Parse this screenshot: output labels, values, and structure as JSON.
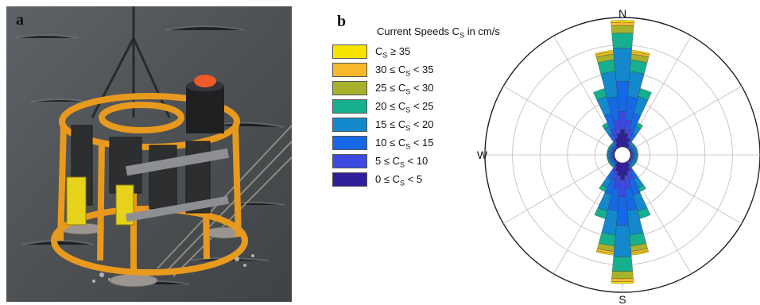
{
  "panel_a": {
    "letter": "a"
  },
  "panel_b": {
    "letter": "b",
    "legend": {
      "title_main": "Current Speeds C",
      "title_sub": "S",
      "title_tail": " in cm/s",
      "items": [
        {
          "pre": "C",
          "sub": "S",
          "post": " ≥ 35",
          "color": "#f7e300"
        },
        {
          "pre": "30 ≤ C",
          "sub": "S",
          "post": " < 35",
          "color": "#f6b92c"
        },
        {
          "pre": "25 ≤ C",
          "sub": "S",
          "post": " < 30",
          "color": "#a7b12c"
        },
        {
          "pre": "20 ≤ C",
          "sub": "S",
          "post": " < 25",
          "color": "#16b08e"
        },
        {
          "pre": "15 ≤ C",
          "sub": "S",
          "post": " < 20",
          "color": "#1488cc"
        },
        {
          "pre": "10 ≤ C",
          "sub": "S",
          "post": " < 15",
          "color": "#1569e6"
        },
        {
          "pre": "5 ≤ C",
          "sub": "S",
          "post": " < 10",
          "color": "#3d4ae0"
        },
        {
          "pre": "0 ≤ C",
          "sub": "S",
          "post": " < 5",
          "color": "#2f1f9a"
        }
      ]
    },
    "compass": {
      "north": "N",
      "south": "S",
      "west": "W"
    }
  }
}
